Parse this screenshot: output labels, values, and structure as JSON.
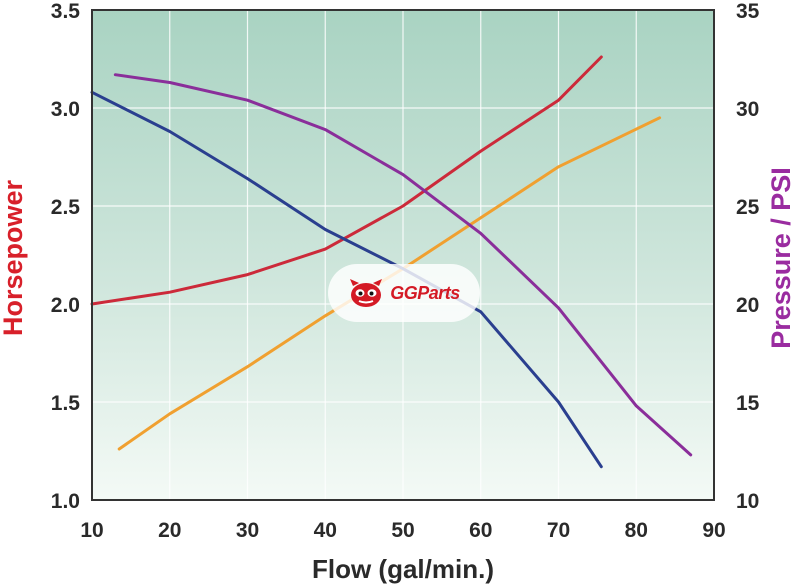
{
  "chart_data": {
    "type": "line",
    "xlabel": "Flow (gal/min.)",
    "ylabel_left": "Horsepower",
    "ylabel_right": "Pressure / PSI",
    "xlim": [
      10,
      90
    ],
    "ylim_left": [
      1.0,
      3.5
    ],
    "ylim_right": [
      10,
      35
    ],
    "x_ticks": [
      "10",
      "20",
      "30",
      "40",
      "50",
      "60",
      "70",
      "80",
      "90"
    ],
    "y_ticks_left": [
      "1.0",
      "1.5",
      "2.0",
      "2.5",
      "3.0",
      "3.5"
    ],
    "y_ticks_right": [
      "10",
      "15",
      "20",
      "25",
      "30",
      "35"
    ],
    "grid": true,
    "colors": {
      "red": "#cc2a3a",
      "orange": "#f0a030",
      "blue": "#2a3f8f",
      "purple": "#8a2e9a",
      "left_axis_label": "#d8202a",
      "right_axis_label": "#9a2ca0",
      "bg_top": "#a9d3c2",
      "bg_bottom": "#f4faf6"
    },
    "series": [
      {
        "color": "red",
        "axis": "left",
        "x": [
          10,
          20,
          30,
          40,
          50,
          60,
          70,
          75.5
        ],
        "y": [
          2.0,
          2.06,
          2.15,
          2.28,
          2.5,
          2.78,
          3.04,
          3.26
        ]
      },
      {
        "color": "orange",
        "axis": "left",
        "x": [
          13.5,
          20,
          30,
          40,
          50,
          60,
          70,
          83
        ],
        "y": [
          1.26,
          1.44,
          1.68,
          1.94,
          2.18,
          2.44,
          2.7,
          2.95
        ]
      },
      {
        "color": "blue",
        "axis": "left",
        "x": [
          10,
          20,
          30,
          40,
          50,
          60,
          70,
          75.5
        ],
        "y": [
          3.08,
          2.88,
          2.64,
          2.38,
          2.18,
          1.96,
          1.5,
          1.17
        ]
      },
      {
        "color": "purple",
        "axis": "right",
        "x": [
          13,
          20,
          30,
          40,
          50,
          60,
          70,
          80,
          87
        ],
        "y": [
          31.7,
          31.3,
          30.4,
          28.9,
          26.6,
          23.6,
          19.8,
          14.8,
          12.3
        ]
      }
    ]
  },
  "watermark": {
    "text": "GGParts",
    "icon": "gg-mascot-logo"
  }
}
